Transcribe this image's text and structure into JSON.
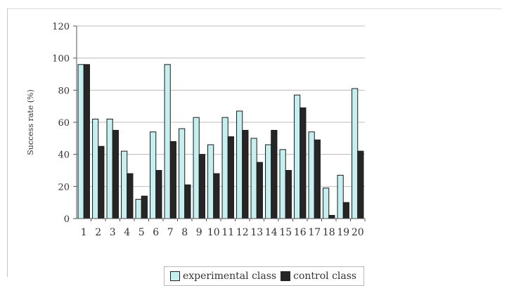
{
  "colors": {
    "experimental": "#c6efef",
    "control": "#262626",
    "bar_stroke": "#1a1a1a",
    "grid": "#bdbdbd",
    "text": "#333333"
  },
  "chart_data": {
    "type": "bar",
    "title": "",
    "xlabel": "",
    "ylabel": "Success rate (%)",
    "ylim": [
      0,
      120
    ],
    "yticks": [
      "0",
      "20",
      "40",
      "60",
      "80",
      "100",
      "120"
    ],
    "grid": true,
    "legend_position": "bottom",
    "categories": [
      "1",
      "2",
      "3",
      "4",
      "5",
      "6",
      "7",
      "8",
      "9",
      "10",
      "11",
      "12",
      "13",
      "14",
      "15",
      "16",
      "17",
      "18",
      "19",
      "20"
    ],
    "series": [
      {
        "name": "experimental class",
        "values": [
          96,
          62,
          62,
          42,
          12,
          54,
          96,
          56,
          63,
          46,
          63,
          67,
          50,
          46,
          43,
          77,
          54,
          19,
          27,
          81
        ]
      },
      {
        "name": "control class",
        "values": [
          96,
          45,
          55,
          28,
          14,
          30,
          48,
          21,
          40,
          28,
          51,
          55,
          35,
          55,
          30,
          69,
          49,
          2,
          10,
          42
        ]
      }
    ]
  }
}
